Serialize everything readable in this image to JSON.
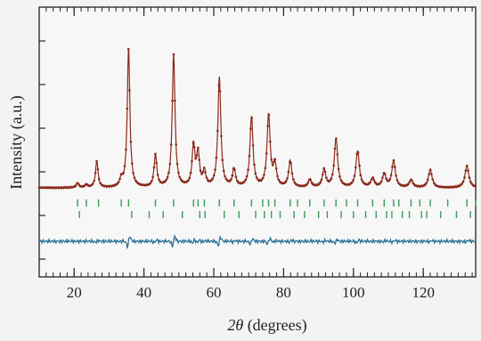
{
  "chart_data": {
    "type": "line",
    "xlabel_italic": "2θ",
    "xlabel_rest": " (degrees)",
    "ylabel": "Intensity (a.u.)",
    "xlim": [
      10,
      135
    ],
    "x_ticks": [
      20,
      40,
      60,
      80,
      100,
      120
    ],
    "tick_labels": [
      "20",
      "40",
      "60",
      "80",
      "100",
      "120"
    ],
    "series": [
      {
        "role": "observed",
        "color": "#8b2a1c",
        "baseline": 0.0,
        "peaks": [
          [
            21,
            0.03
          ],
          [
            23.5,
            0.02
          ],
          [
            26.5,
            0.18
          ],
          [
            33.5,
            0.05
          ],
          [
            35.6,
            0.95
          ],
          [
            43.3,
            0.22
          ],
          [
            48.5,
            0.9
          ],
          [
            54.2,
            0.28
          ],
          [
            55.5,
            0.22
          ],
          [
            57.3,
            0.1
          ],
          [
            61.6,
            0.75
          ],
          [
            65.8,
            0.12
          ],
          [
            70.8,
            0.48
          ],
          [
            75.7,
            0.49
          ],
          [
            77.5,
            0.15
          ],
          [
            81.9,
            0.18
          ],
          [
            87.5,
            0.05
          ],
          [
            91.6,
            0.12
          ],
          [
            95,
            0.33
          ],
          [
            101.2,
            0.25
          ],
          [
            105.5,
            0.06
          ],
          [
            108.8,
            0.09
          ],
          [
            111.5,
            0.18
          ],
          [
            116.5,
            0.05
          ],
          [
            122,
            0.12
          ],
          [
            132.5,
            0.15
          ]
        ]
      },
      {
        "role": "difference",
        "color": "#2a6f97"
      }
    ],
    "reflection_ticks": [
      {
        "row": 1,
        "color": "#3a9b5a",
        "x": [
          21,
          23.5,
          27,
          33.5,
          35.6,
          43.3,
          48.5,
          54.2,
          55.5,
          57.3,
          61.6,
          65.8,
          70.8,
          74,
          75.7,
          77.5,
          81.9,
          84,
          87.5,
          91.6,
          95,
          98,
          101.2,
          105.5,
          108.8,
          111.5,
          113,
          116.5,
          119,
          122,
          127,
          132.5,
          135
        ]
      },
      {
        "row": 2,
        "color": "#3a9b5a",
        "x": [
          21.5,
          36.5,
          41.5,
          45.5,
          51,
          56,
          57.5,
          63,
          67.2,
          72,
          74.5,
          76.5,
          79,
          83,
          86,
          90,
          92.5,
          96.5,
          100,
          103.5,
          106.5,
          109.5,
          111,
          114,
          116,
          119.5,
          121,
          125,
          129.5,
          133.5
        ]
      }
    ]
  }
}
